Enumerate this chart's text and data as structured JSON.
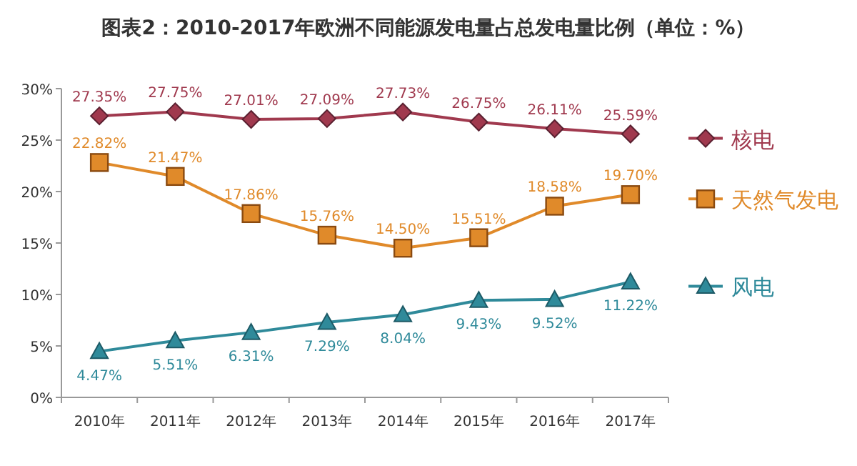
{
  "chart_data": {
    "type": "line",
    "title": "图表2：2010-2017年欧洲不同能源发电量占总发电量比例（单位：%）",
    "categories": [
      "2010年",
      "2011年",
      "2012年",
      "2013年",
      "2014年",
      "2015年",
      "2016年",
      "2017年"
    ],
    "series": [
      {
        "name": "核电",
        "color": "#a0394e",
        "marker": "diamond",
        "values": [
          27.35,
          27.75,
          27.01,
          27.09,
          27.73,
          26.75,
          26.11,
          25.59
        ],
        "value_labels": [
          "27.35%",
          "27.75%",
          "27.01%",
          "27.09%",
          "27.73%",
          "26.75%",
          "26.11%",
          "25.59%"
        ]
      },
      {
        "name": "天然气发电",
        "color": "#e08a2a",
        "marker": "square",
        "values": [
          22.82,
          21.47,
          17.86,
          15.76,
          14.5,
          15.51,
          18.58,
          19.7
        ],
        "value_labels": [
          "22.82%",
          "21.47%",
          "17.86%",
          "15.76%",
          "14.50%",
          "15.51%",
          "18.58%",
          "19.70%"
        ]
      },
      {
        "name": "风电",
        "color": "#2f8a9a",
        "marker": "triangle",
        "values": [
          4.47,
          5.51,
          6.31,
          7.29,
          8.04,
          9.43,
          9.52,
          11.22
        ],
        "value_labels": [
          "4.47%",
          "5.51%",
          "6.31%",
          "7.29%",
          "8.04%",
          "9.43%",
          "9.52%",
          "11.22%"
        ]
      }
    ],
    "ylim": [
      0,
      30
    ],
    "yticks": [
      {
        "value": 0,
        "label": "0%"
      },
      {
        "value": 5,
        "label": "5%"
      },
      {
        "value": 10,
        "label": "10%"
      },
      {
        "value": 15,
        "label": "15%"
      },
      {
        "value": 20,
        "label": "20%"
      },
      {
        "value": 25,
        "label": "25%"
      },
      {
        "value": 30,
        "label": "30%"
      }
    ],
    "grid": false,
    "legend": "right",
    "line_style": "solid"
  }
}
